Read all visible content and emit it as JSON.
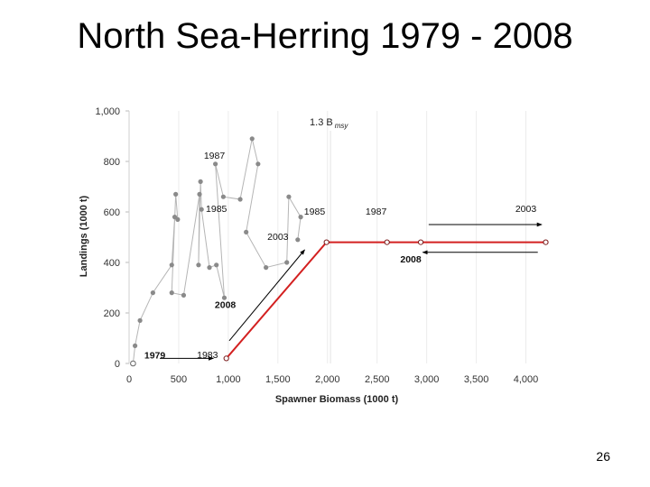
{
  "slide": {
    "title": "North Sea-Herring 1979 - 2008",
    "page_number": "26"
  },
  "chart_data": {
    "type": "scatter",
    "title": "",
    "xlabel": "Spawner Biomass (1000 t)",
    "ylabel": "Landings (1000 t)",
    "xlim": [
      0,
      4250
    ],
    "ylim": [
      0,
      1000
    ],
    "x_ticks": [
      "0",
      "500",
      "1,000",
      "1,500",
      "2,000",
      "2,500",
      "3,000",
      "3,500",
      "4,000"
    ],
    "y_ticks": [
      "0",
      "200",
      "400",
      "600",
      "800",
      "1,000"
    ],
    "grid": "x",
    "series": [
      {
        "points": [
          {
            "x": 40,
            "y": 0
          },
          {
            "x": 60,
            "y": 70
          },
          {
            "x": 110,
            "y": 170
          },
          {
            "x": 240,
            "y": 280
          },
          {
            "x": 430,
            "y": 390
          },
          {
            "x": 460,
            "y": 580
          },
          {
            "x": 490,
            "y": 570
          },
          {
            "x": 470,
            "y": 670
          },
          {
            "x": 430,
            "y": 280
          },
          {
            "x": 550,
            "y": 270
          },
          {
            "x": 710,
            "y": 670
          },
          {
            "x": 700,
            "y": 390
          },
          {
            "x": 720,
            "y": 720
          },
          {
            "x": 730,
            "y": 610
          },
          {
            "x": 810,
            "y": 380
          },
          {
            "x": 880,
            "y": 390
          },
          {
            "x": 960,
            "y": 260
          },
          {
            "x": 870,
            "y": 790
          },
          {
            "x": 950,
            "y": 660
          },
          {
            "x": 1120,
            "y": 650
          },
          {
            "x": 1240,
            "y": 890
          },
          {
            "x": 1300,
            "y": 790
          },
          {
            "x": 1180,
            "y": 520
          },
          {
            "x": 1380,
            "y": 380
          },
          {
            "x": 1590,
            "y": 400
          },
          {
            "x": 1610,
            "y": 660
          },
          {
            "x": 1730,
            "y": 580
          },
          {
            "x": 1700,
            "y": 490
          }
        ]
      },
      {
        "points": [
          {
            "x": 980,
            "y": 20
          },
          {
            "x": 1990,
            "y": 480
          },
          {
            "x": 2600,
            "y": 480
          },
          {
            "x": 2940,
            "y": 480
          },
          {
            "x": 4200,
            "y": 480
          }
        ]
      }
    ],
    "reference_line": {
      "x": 2030,
      "label_main": "1.3 B",
      "label_sub": "msy"
    },
    "annotations": [
      {
        "text": "1987",
        "x": 860,
        "y": 810,
        "bold": false
      },
      {
        "text": "1985",
        "x": 880,
        "y": 600,
        "bold": false
      },
      {
        "text": "2003",
        "x": 1500,
        "y": 490,
        "bold": false
      },
      {
        "text": "2008",
        "x": 970,
        "y": 220,
        "bold": true
      },
      {
        "text": "1979",
        "x": 260,
        "y": 20,
        "bold": true
      },
      {
        "text": "1983",
        "x": 790,
        "y": 22,
        "bold": false
      },
      {
        "text": "1985",
        "x": 1870,
        "y": 590,
        "bold": false
      },
      {
        "text": "1987",
        "x": 2490,
        "y": 590,
        "bold": false
      },
      {
        "text": "2003",
        "x": 4000,
        "y": 600,
        "bold": false
      },
      {
        "text": "2008",
        "x": 2840,
        "y": 400,
        "bold": true
      }
    ]
  }
}
